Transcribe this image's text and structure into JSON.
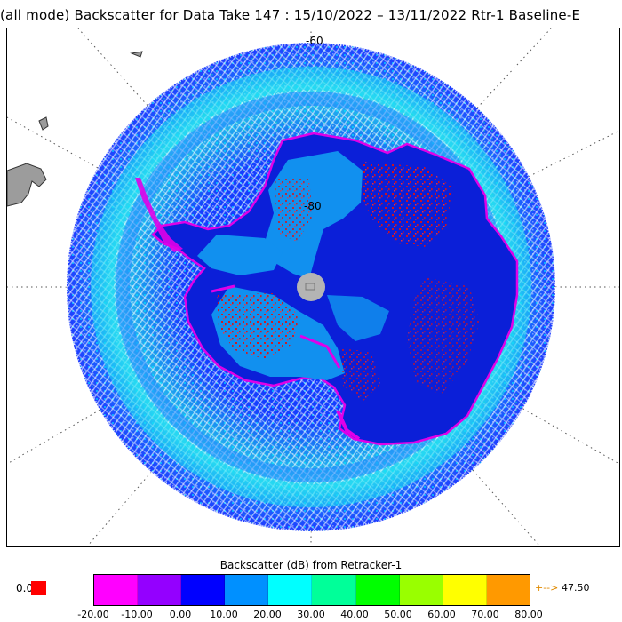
{
  "title": "(all mode) Backscatter for Data Take 147 : 15/10/2022 – 13/11/2022 Rtr-1 Baseline-E",
  "map": {
    "projection": "south polar stereographic",
    "latitude_labels": [
      "-60",
      "-80"
    ],
    "pole_hole_color": "#b4b4b4"
  },
  "legend": {
    "title": "Backscatter (dB) from Retracker-1",
    "min_value": "0.0",
    "max_value": "47.50",
    "max_arrow": "+-->",
    "bins": [
      {
        "color": "#ff00ff"
      },
      {
        "color": "#9400ff"
      },
      {
        "color": "#0000ff"
      },
      {
        "color": "#0090ff"
      },
      {
        "color": "#00ffff"
      },
      {
        "color": "#00ff99"
      },
      {
        "color": "#00ff00"
      },
      {
        "color": "#99ff00"
      },
      {
        "color": "#ffff00"
      },
      {
        "color": "#ff9900"
      }
    ],
    "ticks": [
      "-20.00",
      "-10.00",
      "0.00",
      "10.00",
      "20.00",
      "30.00",
      "40.00",
      "50.00",
      "60.00",
      "70.00",
      "80.00"
    ]
  },
  "colors": {
    "ocean_dense": "#0a2bff",
    "ocean_light": "#00e6ff",
    "land_interior": "#0b1fd8",
    "land_light": "#1190ef",
    "coast_magenta": "#e000e8",
    "hotspot_red": "#e01010",
    "continent_gray": "#9c9c9c"
  }
}
